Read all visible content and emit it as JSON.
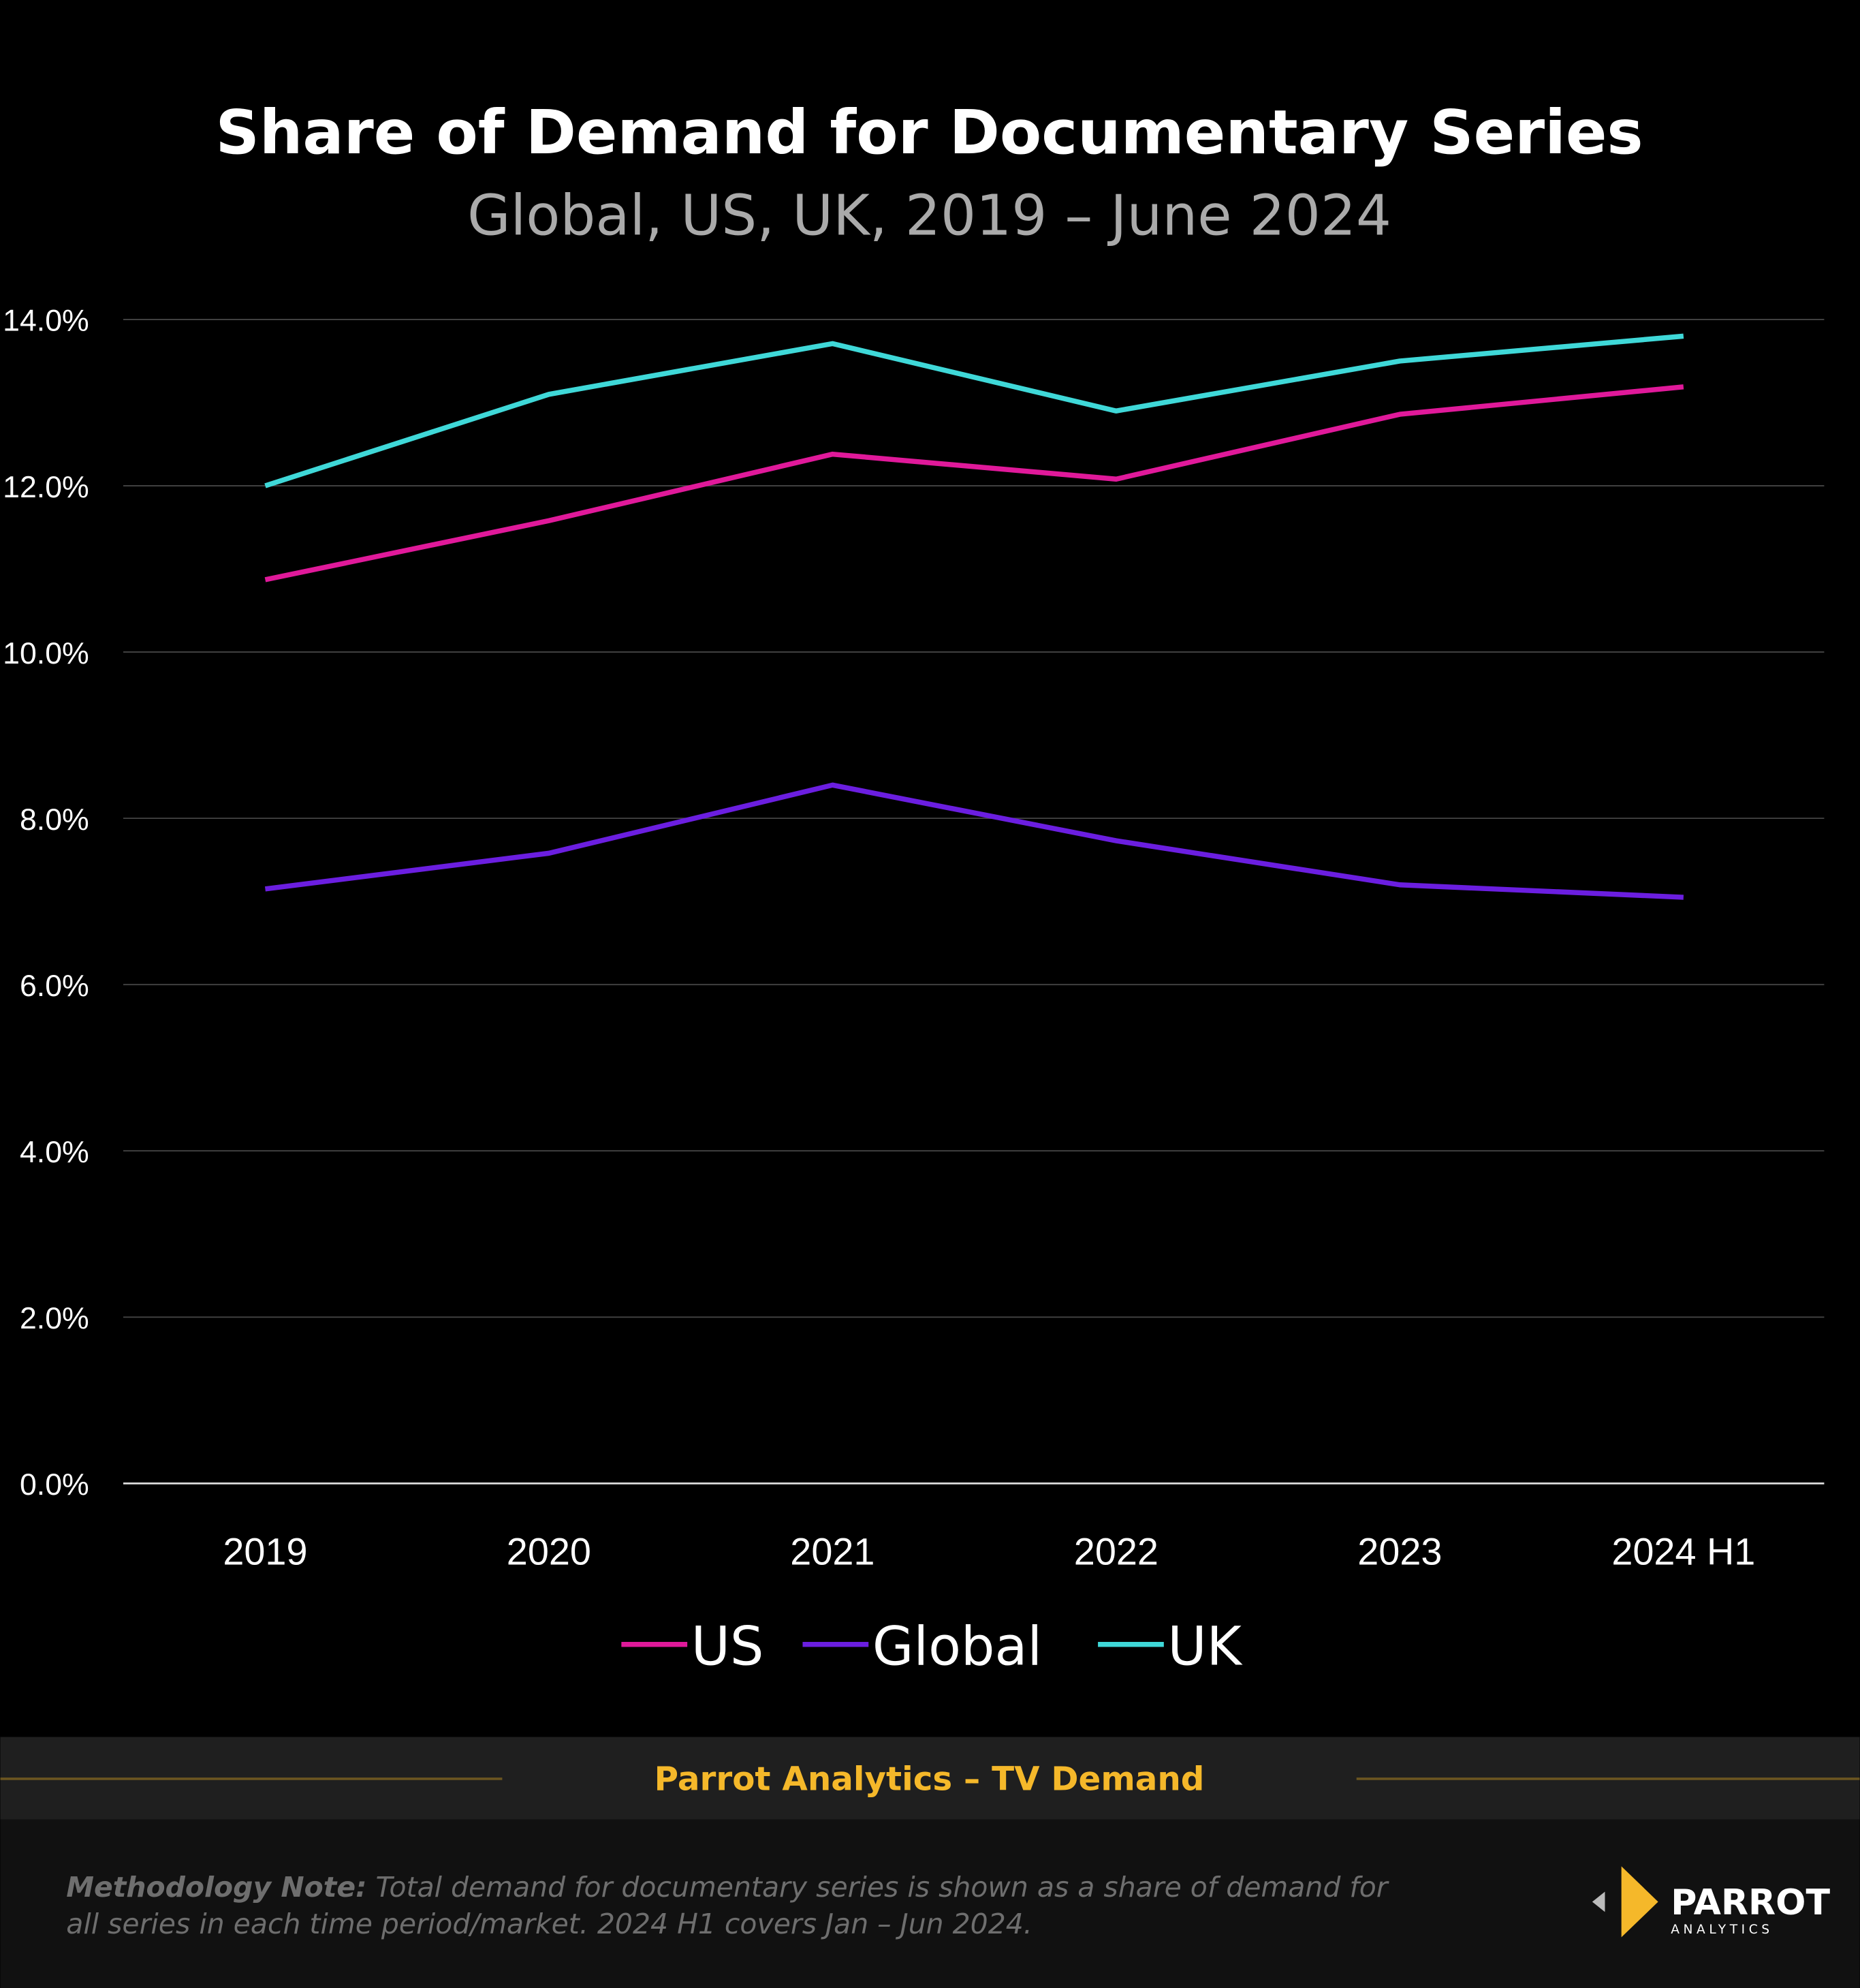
{
  "chart_data": {
    "type": "line",
    "title": "Share of Demand for Documentary Series",
    "subtitle": "Global, US, UK, 2019 – June 2024",
    "categories": [
      "2019",
      "2020",
      "2021",
      "2022",
      "2023",
      "2024 H1"
    ],
    "ylim": [
      0,
      14
    ],
    "yticks": [
      "0.0%",
      "2.0%",
      "4.0%",
      "6.0%",
      "8.0%",
      "10.0%",
      "12.0%",
      "14.0%"
    ],
    "ytick_values": [
      0,
      2,
      4,
      6,
      8,
      10,
      12,
      14
    ],
    "grid": true,
    "legend_position": "bottom",
    "series": [
      {
        "name": "US",
        "color": "#e0199a",
        "values": [
          10.87,
          11.58,
          12.38,
          12.08,
          12.86,
          13.19
        ]
      },
      {
        "name": "Global",
        "color": "#6b1ee0",
        "values": [
          7.15,
          7.58,
          8.4,
          7.73,
          7.2,
          7.05
        ]
      },
      {
        "name": "UK",
        "color": "#3fd8d8",
        "values": [
          12.0,
          13.1,
          13.71,
          12.9,
          13.5,
          13.8
        ]
      }
    ]
  },
  "footer": {
    "brand_line": "Parrot Analytics – TV Demand",
    "brand_color": "#f5b82a",
    "note_label": "Methodology Note:",
    "note_line1": "Total demand for documentary series is shown as a share of demand for",
    "note_line2": "all series in each time period/market.  2024 H1 covers Jan – Jun 2024.",
    "logo_name": "PARROT",
    "logo_sub": "ANALYTICS"
  }
}
